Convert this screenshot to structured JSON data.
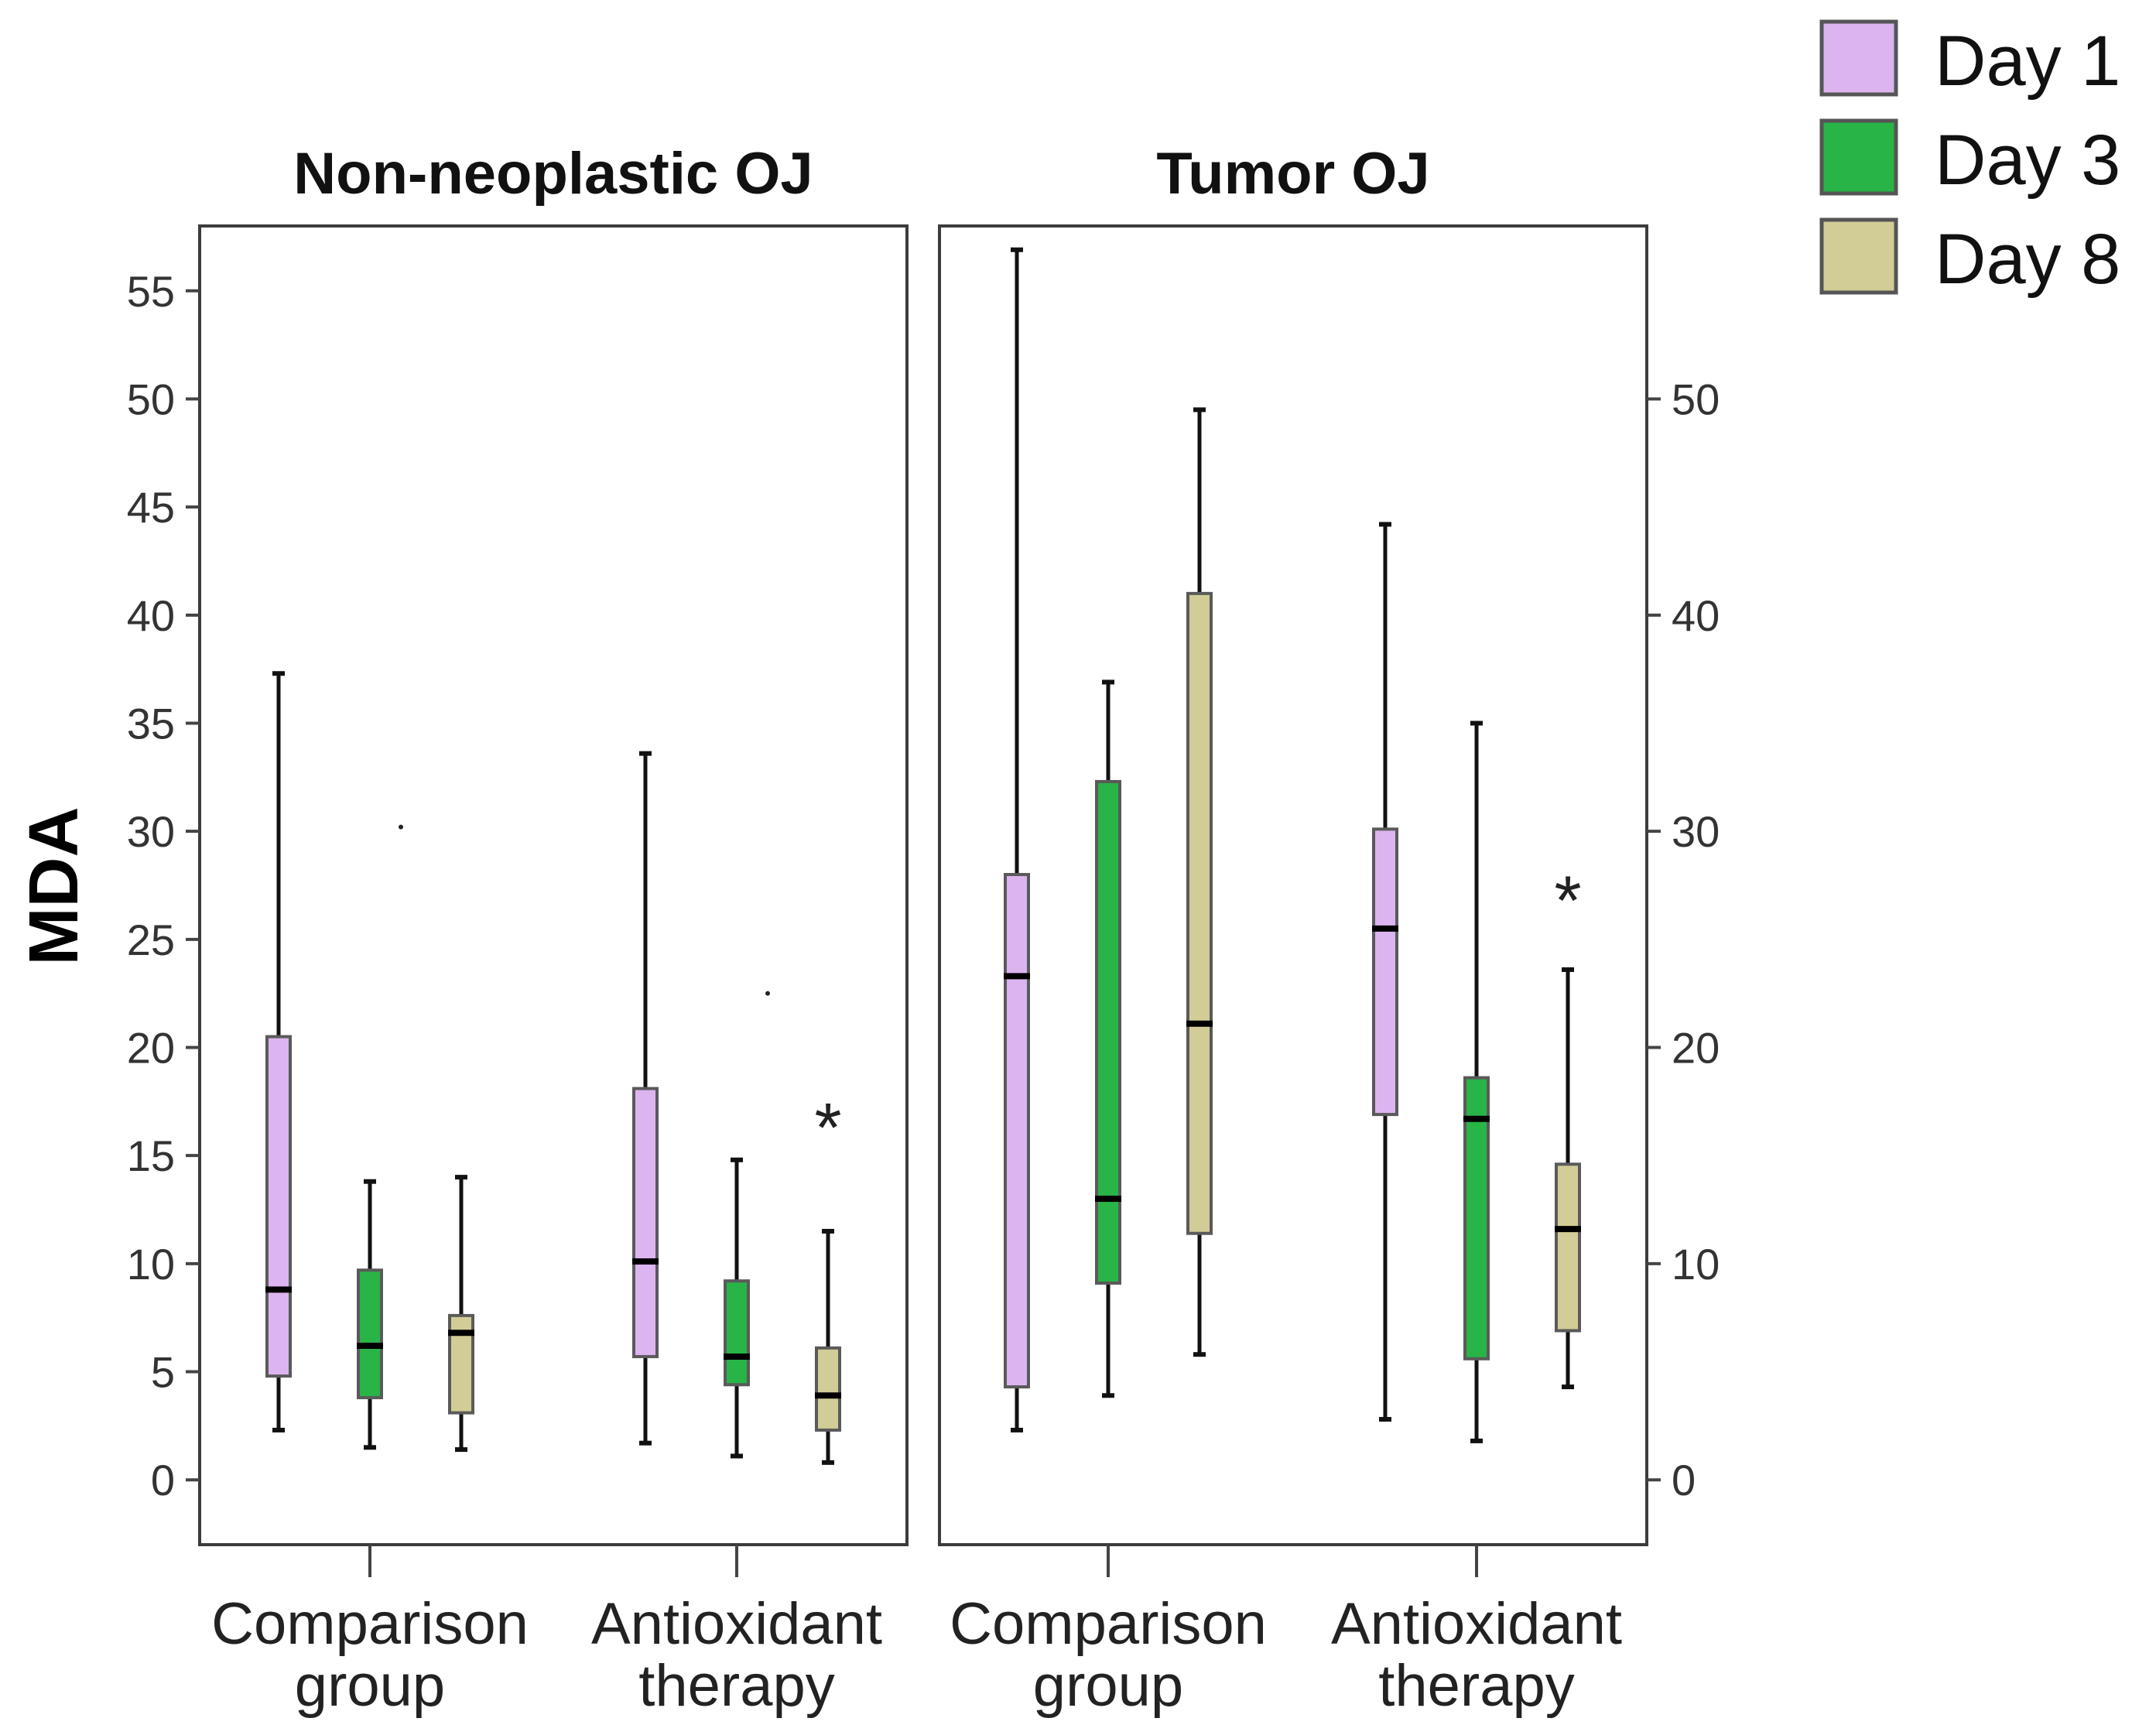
{
  "chart_data": {
    "type": "boxplot",
    "ylabel": "MDA",
    "legend": {
      "placement": "top-right",
      "entries": [
        {
          "name": "Day 1",
          "color": "#dcb4f0"
        },
        {
          "name": "Day 3",
          "color": "#28b446"
        },
        {
          "name": "Day 8",
          "color": "#d2cd96"
        }
      ]
    },
    "panels": [
      {
        "title": "Non-neoplastic OJ",
        "axis_side": "left",
        "ylim": [
          -3,
          58
        ],
        "yticks": [
          0,
          5,
          10,
          15,
          20,
          25,
          30,
          35,
          40,
          45,
          50,
          55
        ],
        "groups": [
          {
            "label_lines": [
              "Comparison",
              "group"
            ],
            "boxes": [
              {
                "series": "Day 1",
                "min": 2.3,
                "q1": 4.8,
                "median": 8.8,
                "q3": 20.5,
                "max": 37.3
              },
              {
                "series": "Day 3",
                "min": 1.5,
                "q1": 3.8,
                "median": 6.2,
                "q3": 9.7,
                "max": 13.8,
                "outliers": [
                  30.2
                ]
              },
              {
                "series": "Day 8",
                "min": 1.4,
                "q1": 3.1,
                "median": 6.8,
                "q3": 7.6,
                "max": 14.0
              }
            ]
          },
          {
            "label_lines": [
              "Antioxidant",
              "therapy"
            ],
            "boxes": [
              {
                "series": "Day 1",
                "min": 1.7,
                "q1": 5.7,
                "median": 10.1,
                "q3": 18.1,
                "max": 33.6
              },
              {
                "series": "Day 3",
                "min": 1.1,
                "q1": 4.4,
                "median": 5.7,
                "q3": 9.2,
                "max": 14.8,
                "outliers": [
                  22.5
                ]
              },
              {
                "series": "Day 8",
                "min": 0.8,
                "q1": 2.3,
                "median": 3.9,
                "q3": 6.1,
                "max": 11.5,
                "extremes": [
                  16.8
                ]
              }
            ]
          }
        ]
      },
      {
        "title": "Tumor OJ",
        "axis_side": "right",
        "ylim": [
          -3,
          58
        ],
        "yticks": [
          0,
          10,
          20,
          30,
          40,
          50
        ],
        "groups": [
          {
            "label_lines": [
              "Comparison",
              "group"
            ],
            "boxes": [
              {
                "series": "Day 1",
                "min": 2.3,
                "q1": 4.3,
                "median": 23.3,
                "q3": 28.0,
                "max": 56.9
              },
              {
                "series": "Day 3",
                "min": 3.9,
                "q1": 9.1,
                "median": 13.0,
                "q3": 32.3,
                "max": 36.9
              },
              {
                "series": "Day 8",
                "min": 5.8,
                "q1": 11.4,
                "median": 21.1,
                "q3": 41.0,
                "max": 49.5
              }
            ]
          },
          {
            "label_lines": [
              "Antioxidant",
              "therapy"
            ],
            "boxes": [
              {
                "series": "Day 1",
                "min": 2.8,
                "q1": 16.9,
                "median": 25.5,
                "q3": 30.1,
                "max": 44.2
              },
              {
                "series": "Day 3",
                "min": 1.8,
                "q1": 5.6,
                "median": 16.7,
                "q3": 18.6,
                "max": 35.0
              },
              {
                "series": "Day 8",
                "min": 4.3,
                "q1": 6.9,
                "median": 11.6,
                "q3": 14.6,
                "max": 23.6,
                "extremes": [
                  27.3
                ]
              }
            ]
          }
        ]
      }
    ]
  }
}
